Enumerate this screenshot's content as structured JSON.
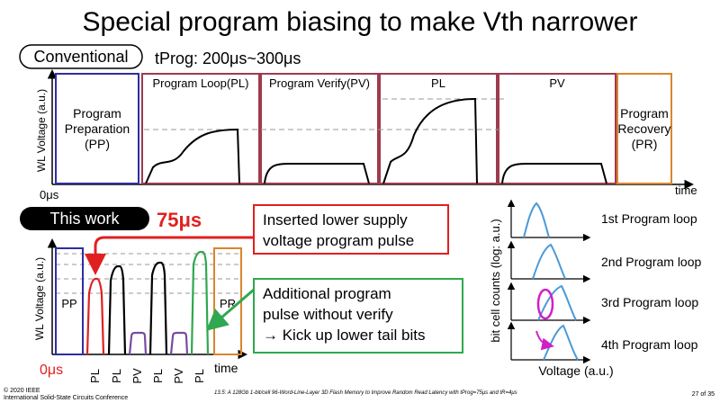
{
  "slide": {
    "title": "Special program biasing to make Vth narrower",
    "footer_left_1": "© 2020 IEEE",
    "footer_left_2": "International Solid-State Circuits Conference",
    "footer_center": "13.5: A 128Gb 1-bit/cell 96-Word-Line-Layer 3D Flash Memory to Improve Random Read Latency with tProg=75μs and tR=4μs",
    "footer_page": "27 of 35"
  },
  "conventional": {
    "badge": "Conventional",
    "tprog": "tProg: 200μs~300μs",
    "y_label": "WL Voltage (a.u.)",
    "zero_label": "0μs",
    "time_label": "time",
    "pp_line1": "Program",
    "pp_line2": "Preparation",
    "pp_line3": "(PP)",
    "pl_label": "Program Loop(PL)",
    "pv_label": "Program Verify(PV)",
    "pl2_label": "PL",
    "pv2_label": "PV",
    "pr_line1": "Program",
    "pr_line2": "Recovery",
    "pr_line3": "(PR)"
  },
  "this_work": {
    "badge": "This work",
    "time_value": "75μs",
    "y_label": "WL Voltage (a.u.)",
    "zero_label": "0μs",
    "time_label": "time",
    "pp_label": "PP",
    "pr_label": "PR",
    "x_ticks": [
      "PL",
      "PL",
      "PV",
      "PL",
      "PV",
      "PL"
    ],
    "callout_red_1": "Inserted lower supply",
    "callout_red_2": "voltage program pulse",
    "callout_green_1": "Additional program",
    "callout_green_2": "pulse without verify",
    "callout_green_3": "→ Kick up lower tail bits"
  },
  "distribution": {
    "y_label": "bit cell counts (log: a.u.)",
    "x_label": "Voltage (a.u.)",
    "loops": [
      "1st Program loop",
      "2nd Program loop",
      "3rd Program loop",
      "4th Program loop"
    ]
  },
  "colors": {
    "pp": "#2e2ea0",
    "pl": "#9e3b4f",
    "pv": "#7a4aa0",
    "pr": "#d9852e",
    "red": "#e02020",
    "green": "#2fa84f",
    "dist": "#4a9ad8",
    "magenta": "#d020c8"
  }
}
